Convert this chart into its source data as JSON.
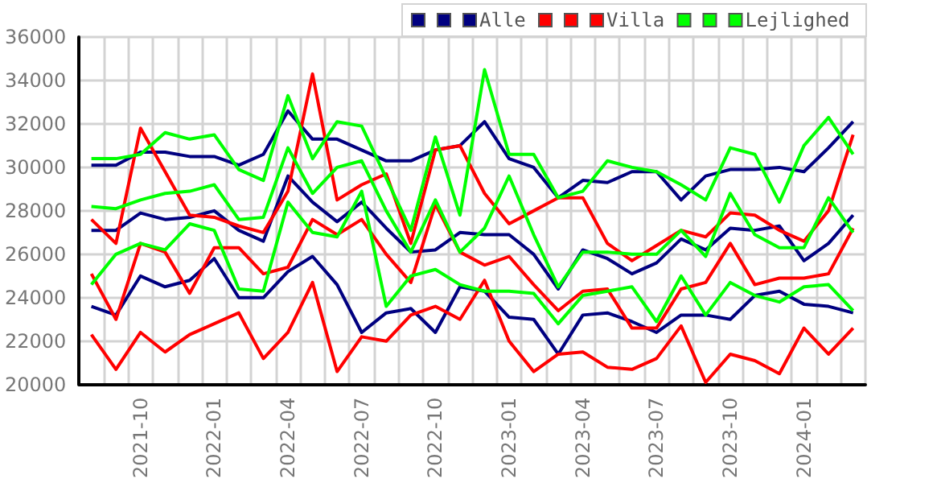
{
  "chart_data": {
    "type": "line",
    "categories": [
      null,
      null,
      "2021-10",
      null,
      null,
      "2022-01",
      null,
      null,
      "2022-04",
      null,
      null,
      "2022-07",
      null,
      null,
      "2022-10",
      null,
      null,
      "2023-01",
      null,
      null,
      "2023-04",
      null,
      null,
      "2023-07",
      null,
      null,
      "2023-10",
      null,
      null,
      "2024-01",
      null,
      null
    ],
    "series": [
      {
        "color": "#000080",
        "values": [
          30100,
          30100,
          30700,
          30700,
          30500,
          30500,
          30100,
          30600,
          32600,
          31300,
          31300,
          30800,
          30300,
          30300,
          30800,
          31000,
          32100,
          30400,
          30000,
          28600,
          29400,
          29300,
          29800,
          29800,
          28500,
          29600,
          29900,
          29900,
          30000,
          29800,
          30900,
          32100
        ]
      },
      {
        "color": "#000080",
        "values": [
          23600,
          23200,
          25000,
          24500,
          24800,
          25800,
          24000,
          24000,
          25200,
          25900,
          24600,
          22400,
          23300,
          23500,
          22400,
          24500,
          24300,
          23100,
          23000,
          21400,
          23200,
          23300,
          22900,
          22400,
          23200,
          23200,
          23000,
          24100,
          24300,
          23700,
          23600,
          23300
        ]
      },
      {
        "name": "Alle",
        "color": "#000080",
        "values": [
          27100,
          27100,
          27900,
          27600,
          27700,
          28000,
          27100,
          26600,
          29600,
          28400,
          27500,
          28400,
          27200,
          26100,
          26200,
          27000,
          26900,
          26900,
          26000,
          24400,
          26200,
          25800,
          25100,
          25600,
          26700,
          26200,
          27200,
          27100,
          27300,
          25700,
          26500,
          27800
        ]
      },
      {
        "color": "#ff0000",
        "values": [
          27600,
          26500,
          31800,
          29800,
          27800,
          27700,
          27300,
          27000,
          28900,
          34300,
          28500,
          29200,
          29700,
          26500,
          30800,
          31000,
          28800,
          27400,
          28000,
          28600,
          28600,
          26500,
          25700,
          26400,
          27100,
          26800,
          27900,
          27800,
          27100,
          26600,
          28000,
          31500
        ]
      },
      {
        "color": "#ff0000",
        "values": [
          22300,
          20700,
          22400,
          21500,
          22300,
          22800,
          23300,
          21200,
          22400,
          24700,
          20600,
          22200,
          22000,
          23200,
          23600,
          23000,
          24800,
          22000,
          20600,
          21400,
          21500,
          20800,
          20700,
          21200,
          22700,
          20100,
          21400,
          21100,
          20500,
          22600,
          21400,
          22600
        ]
      },
      {
        "name": "Villa",
        "color": "#ff0000",
        "values": [
          25100,
          23000,
          26500,
          26100,
          24200,
          26300,
          26300,
          25100,
          25400,
          27600,
          26900,
          27600,
          26000,
          24700,
          28300,
          26100,
          25500,
          25900,
          24600,
          23400,
          24300,
          24400,
          22600,
          22600,
          24400,
          24700,
          26500,
          24600,
          24900,
          24900,
          25100,
          27200
        ]
      },
      {
        "color": "#00ff00",
        "values": [
          30400,
          30400,
          30600,
          31600,
          31300,
          31500,
          29900,
          29400,
          33300,
          30400,
          32100,
          31900,
          29500,
          27100,
          31400,
          27800,
          34500,
          30600,
          30600,
          28600,
          28900,
          30300,
          30000,
          29800,
          29200,
          28500,
          30900,
          30600,
          28400,
          31000,
          32300,
          30600
        ]
      },
      {
        "color": "#00ff00",
        "values": [
          24600,
          26000,
          26500,
          26200,
          27400,
          27100,
          24400,
          24300,
          28400,
          27000,
          26800,
          28900,
          23600,
          25000,
          25300,
          24600,
          24300,
          24300,
          24200,
          22800,
          24100,
          24300,
          24500,
          22900,
          25000,
          23200,
          24700,
          24100,
          23800,
          24500,
          24600,
          23400
        ]
      },
      {
        "name": "Lejlighed",
        "color": "#00ff00",
        "values": [
          28200,
          28100,
          28500,
          28800,
          28900,
          29200,
          27600,
          27700,
          30900,
          28800,
          30000,
          30300,
          28000,
          26100,
          28500,
          26100,
          27200,
          29600,
          26900,
          24500,
          26100,
          26100,
          26000,
          26000,
          27100,
          25900,
          28800,
          26900,
          26300,
          26300,
          28600,
          27000
        ]
      }
    ],
    "ylim": [
      20000,
      36000
    ],
    "yticks": [
      20000,
      22000,
      24000,
      26000,
      28000,
      30000,
      32000,
      34000,
      36000
    ],
    "grid": true,
    "legend": "top right",
    "marker": "none"
  }
}
